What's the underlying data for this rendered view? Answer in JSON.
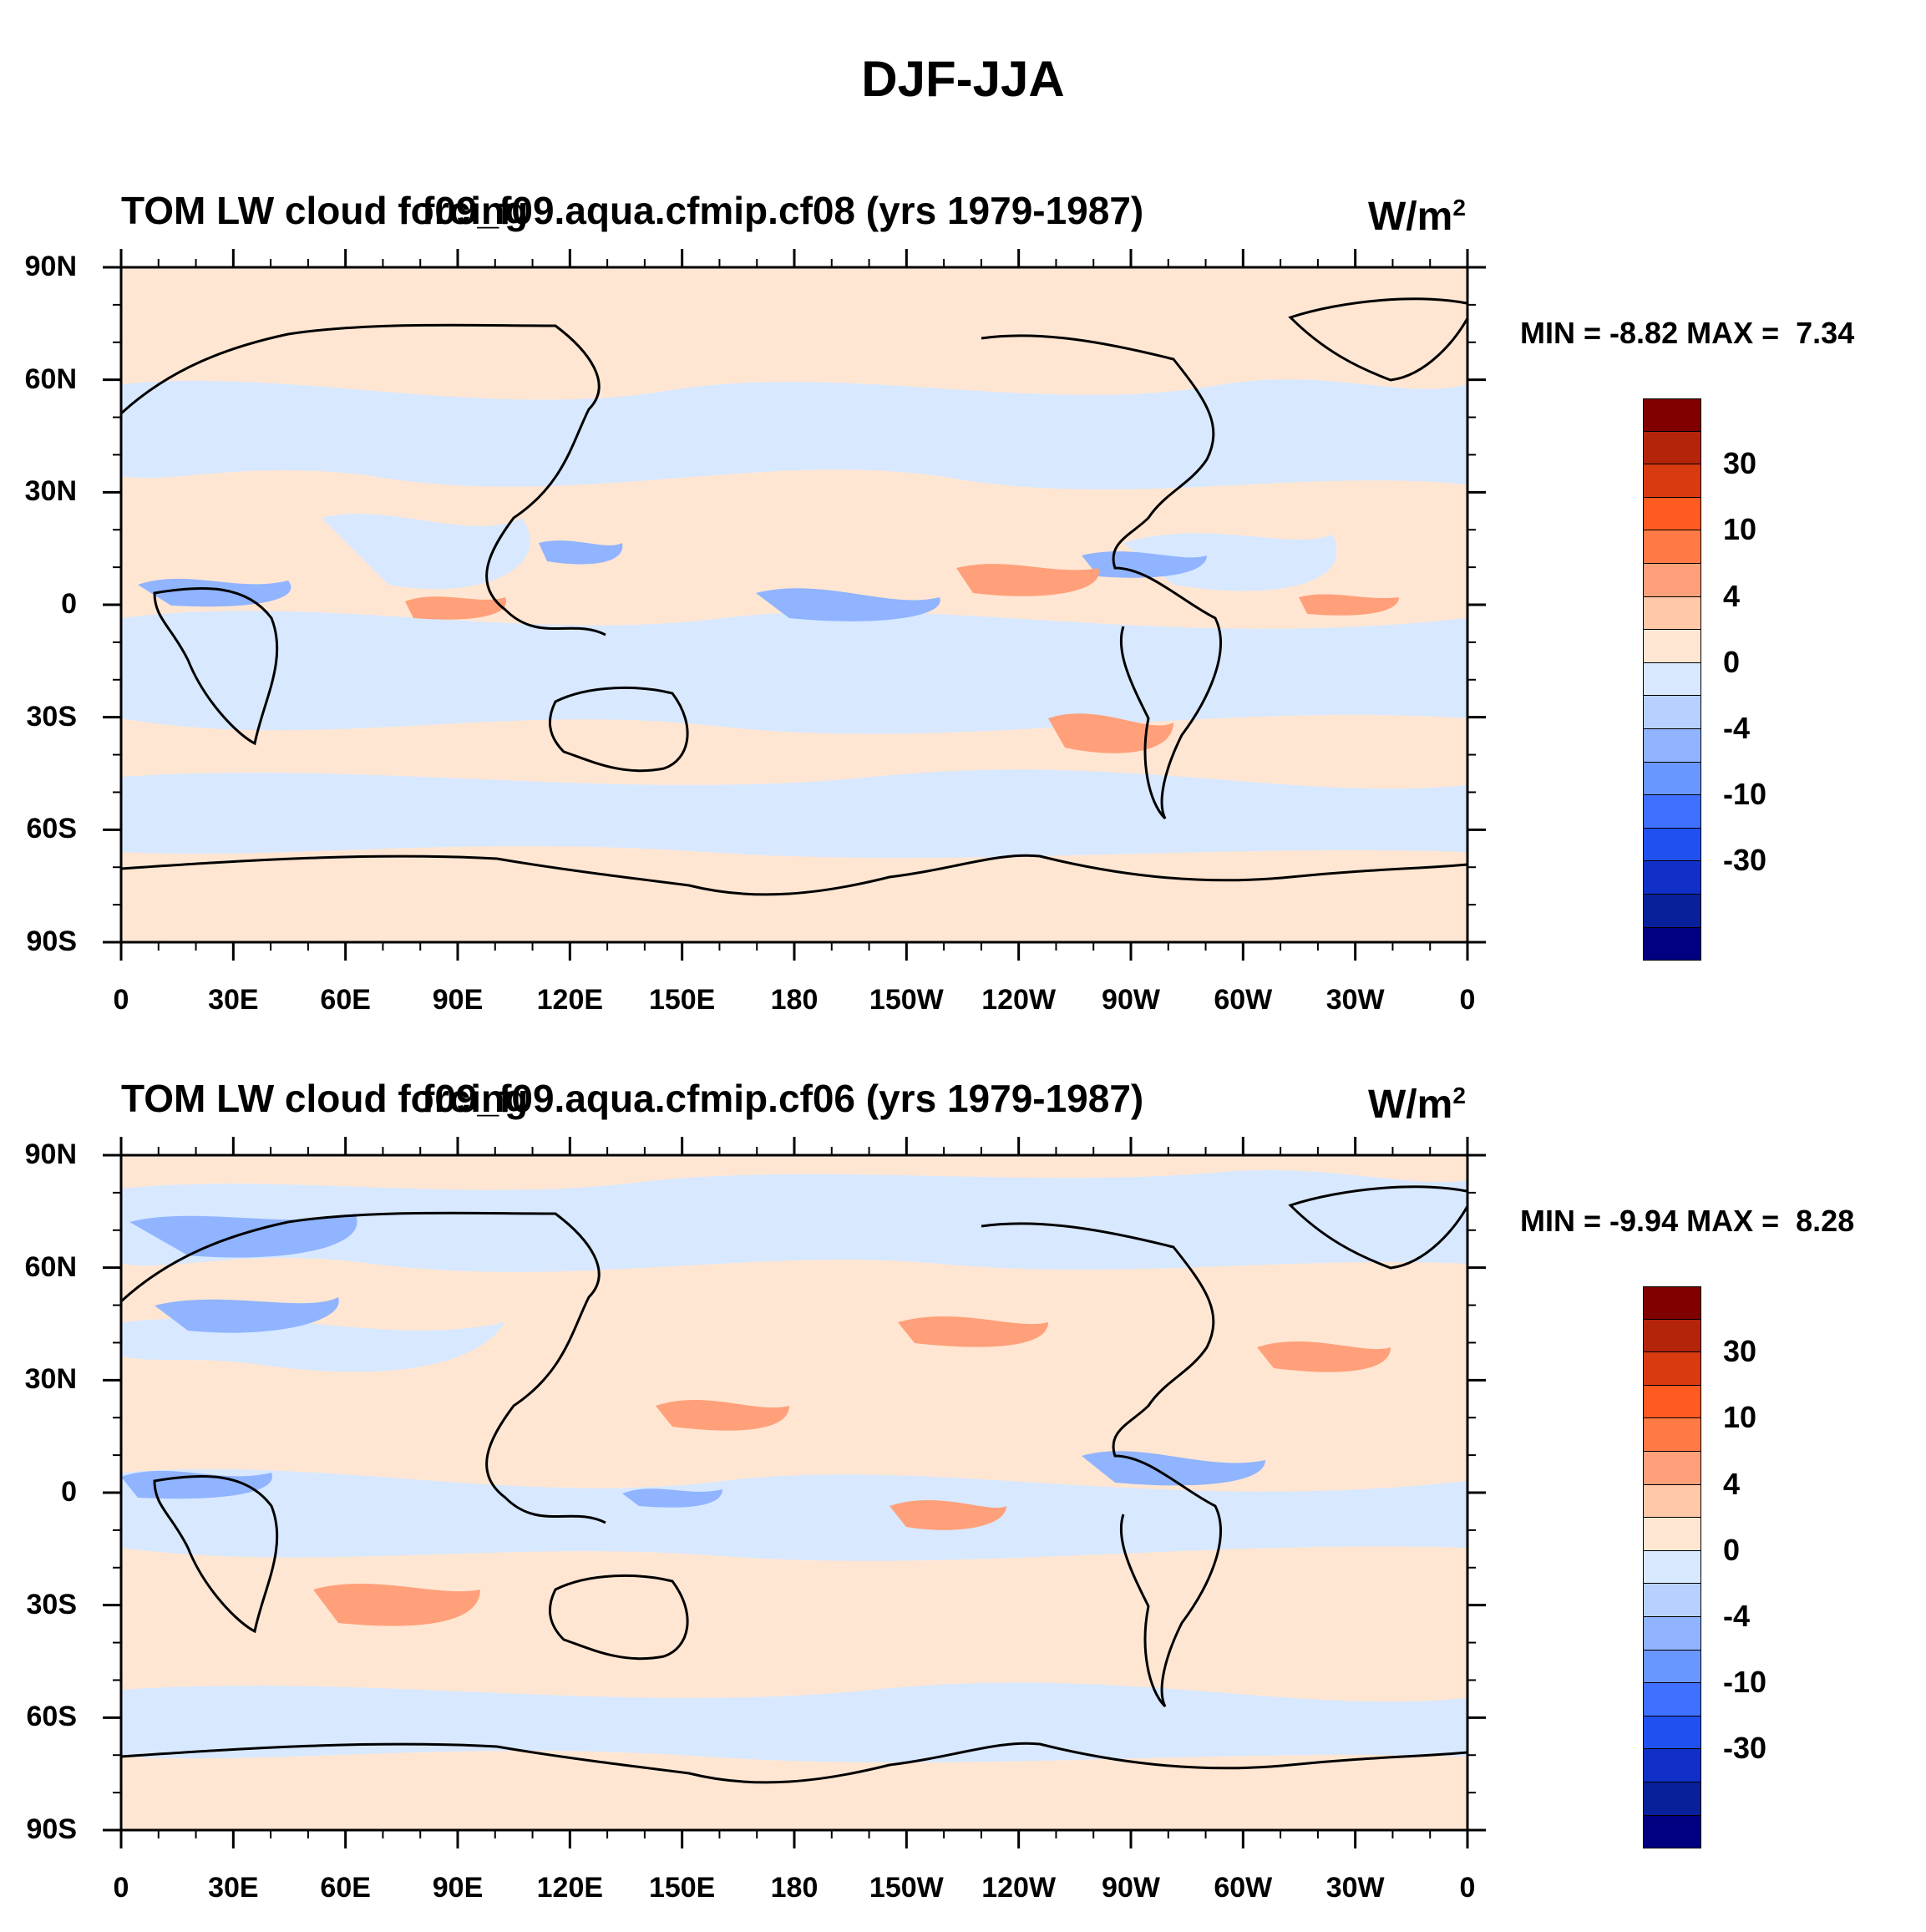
{
  "figure_title": "DJF-JJA",
  "chart_data": [
    {
      "type": "map",
      "title_left": "TOM LW cloud forcing",
      "title_overlap": "f09_f09.aqua.cfmip.cf08 (yrs 1979-1987)",
      "units": "W/m",
      "units_sup": "2",
      "min_label": "MIN =",
      "min_value": "-8.82",
      "max_label": "MAX =",
      "max_value": "7.34",
      "lat_labels": [
        "90N",
        "60N",
        "30N",
        "0",
        "30S",
        "60S",
        "90S"
      ],
      "lon_labels": [
        "0",
        "30E",
        "60E",
        "90E",
        "120E",
        "150E",
        "180",
        "150W",
        "120W",
        "90W",
        "60W",
        "30W",
        "0"
      ],
      "colorbar_levels": [
        "30",
        "10",
        "4",
        "0",
        "-4",
        "-10",
        "-30"
      ]
    },
    {
      "type": "map",
      "title_left": "TOM LW cloud forcing",
      "title_overlap": "f09_f09.aqua.cfmip.cf06 (yrs 1979-1987)",
      "units": "W/m",
      "units_sup": "2",
      "min_label": "MIN =",
      "min_value": "-9.94",
      "max_label": "MAX =",
      "max_value": "8.28",
      "lat_labels": [
        "90N",
        "60N",
        "30N",
        "0",
        "30S",
        "60S",
        "90S"
      ],
      "lon_labels": [
        "0",
        "30E",
        "60E",
        "90E",
        "120E",
        "150E",
        "180",
        "150W",
        "120W",
        "90W",
        "60W",
        "30W",
        "0"
      ],
      "colorbar_levels": [
        "30",
        "10",
        "4",
        "0",
        "-4",
        "-10",
        "-30"
      ]
    }
  ],
  "colors": {
    "colorbar": [
      "#800000",
      "#b3240a",
      "#d93a10",
      "#ff5a20",
      "#ff7a45",
      "#ffa07a",
      "#ffc8a8",
      "#ffe6d2",
      "#d8e8ff",
      "#b8d0ff",
      "#90b4ff",
      "#6a96ff",
      "#4070ff",
      "#2050f0",
      "#1030c8",
      "#08209a",
      "#000080"
    ],
    "land_outline": "#000000"
  }
}
